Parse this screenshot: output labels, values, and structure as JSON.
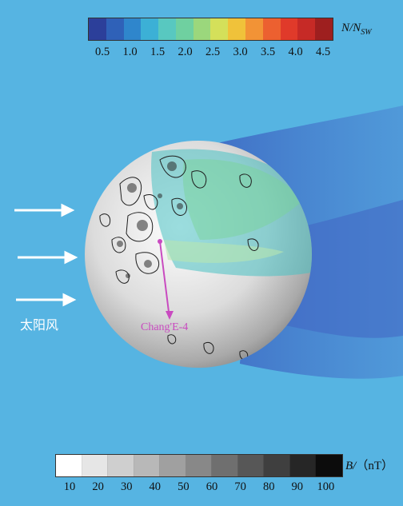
{
  "density_colorbar": {
    "label_main": "N/N",
    "label_sub": "SW",
    "colors": [
      "#2c3f9a",
      "#2f61b8",
      "#2f86cc",
      "#3cb0d6",
      "#58c8c0",
      "#6fd0a0",
      "#9bd77c",
      "#d4e05a",
      "#f0c23a",
      "#f29336",
      "#ec6030",
      "#e03a2a",
      "#c62a26",
      "#9e1f1f"
    ],
    "ticks": [
      "0.5",
      "1.0",
      "1.5",
      "2.0",
      "2.5",
      "3.0",
      "3.5",
      "4.0",
      "4.5"
    ]
  },
  "field_colorbar": {
    "label_main": "B/",
    "label_unit": "（nT）",
    "colors": [
      "#ffffff",
      "#e6e6e6",
      "#cfcfcf",
      "#b8b8b8",
      "#a0a0a0",
      "#888888",
      "#6f6f6f",
      "#575757",
      "#3f3f3f",
      "#262626",
      "#0c0c0c"
    ],
    "ticks": [
      "10",
      "20",
      "30",
      "40",
      "50",
      "60",
      "70",
      "80",
      "90",
      "100"
    ]
  },
  "labels": {
    "solar_wind": "太阳风",
    "landing_site": "Chang'E-4"
  },
  "colors": {
    "background": "#56b4e2",
    "annotation": "#c94ac0",
    "arrow": "#ffffff"
  }
}
